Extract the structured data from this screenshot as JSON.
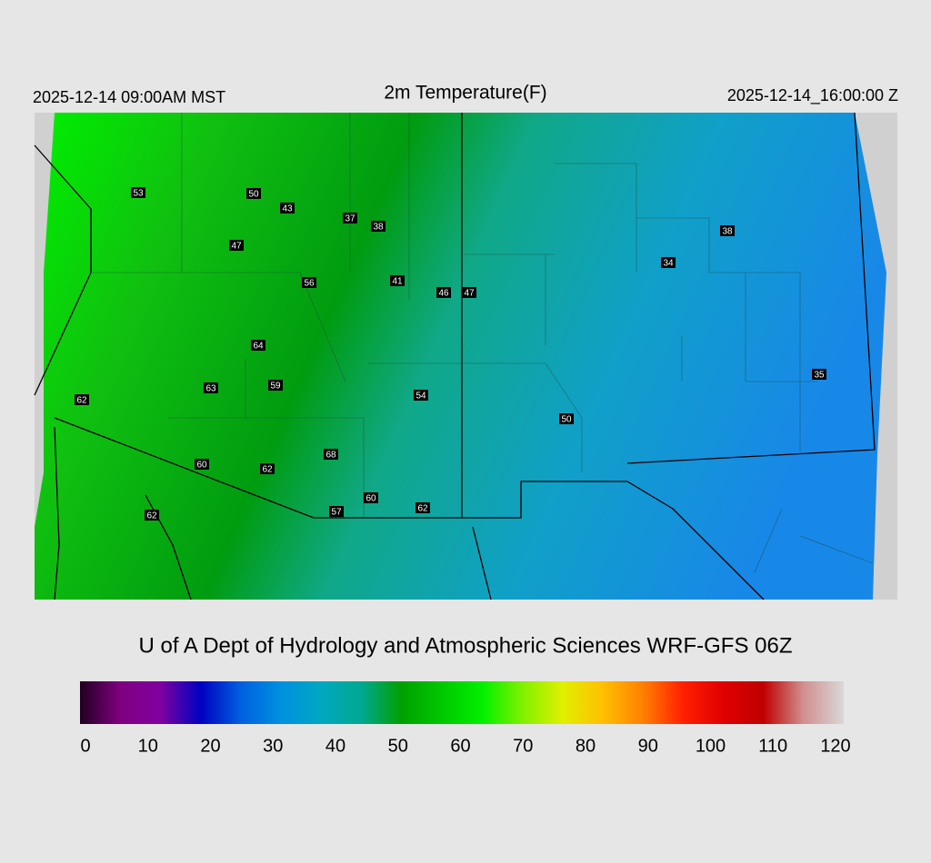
{
  "header": {
    "title": "2m Temperature(F)",
    "valid_local": "2025-12-14 09:00AM MST",
    "valid_utc": "2025-12-14_16:00:00 Z"
  },
  "stations": [
    53,
    50,
    43,
    37,
    38,
    47,
    56,
    41,
    46,
    47,
    34,
    38,
    64,
    63,
    59,
    54,
    62,
    50,
    35,
    68,
    60,
    62,
    60,
    57,
    62,
    62
  ],
  "footer": "U of A Dept of Hydrology and Atmospheric Sciences WRF-GFS 06Z",
  "colorbar": {
    "ticks": [
      0,
      10,
      20,
      30,
      40,
      50,
      60,
      70,
      80,
      90,
      100,
      110,
      120
    ],
    "colors": [
      "#200020",
      "#800080",
      "#8000a0",
      "#0000c0",
      "#0060e0",
      "#0090e0",
      "#00a8c0",
      "#00a890",
      "#00a000",
      "#00c800",
      "#00f000",
      "#80f000",
      "#e0f000",
      "#ffc000",
      "#ff8000",
      "#ff2000",
      "#e00000",
      "#c00000",
      "#d09090",
      "#d8d8d8"
    ]
  }
}
